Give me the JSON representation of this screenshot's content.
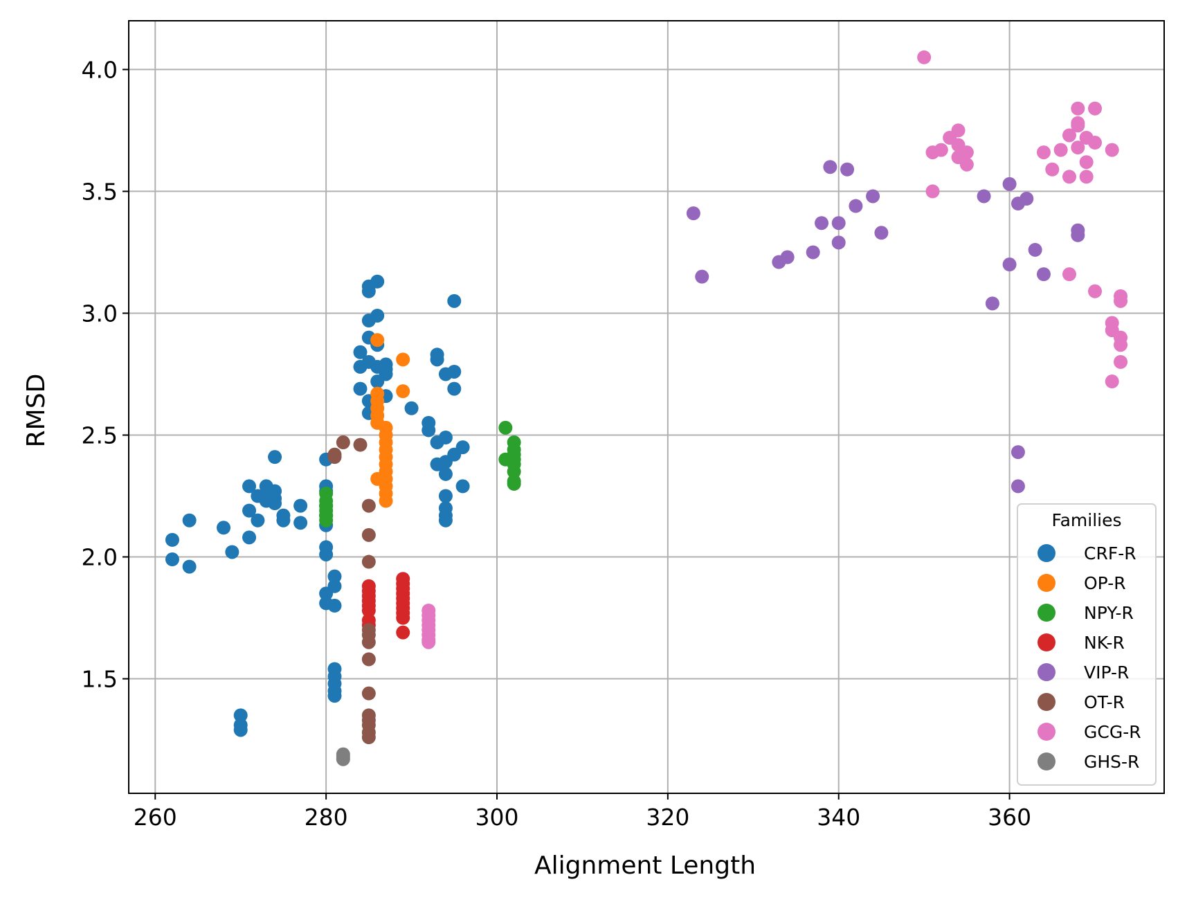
{
  "chart_data": {
    "type": "scatter",
    "title": "",
    "xlabel": "Alignment Length",
    "ylabel": "RMSD",
    "xlim": [
      256.9,
      378.1
    ],
    "ylim": [
      1.03,
      4.2
    ],
    "xticks": [
      260,
      280,
      300,
      320,
      340,
      360
    ],
    "yticks": [
      1.5,
      2.0,
      2.5,
      3.0,
      3.5,
      4.0
    ],
    "ytick_labels": [
      "1.5",
      "2.0",
      "2.5",
      "3.0",
      "3.5",
      "4.0"
    ],
    "grid": true,
    "legend": {
      "title": "Families",
      "position": "lower right"
    },
    "series": [
      {
        "name": "CRF-R",
        "color": "#1f77b4",
        "points": [
          [
            262,
            2.07
          ],
          [
            262,
            1.99
          ],
          [
            264,
            2.15
          ],
          [
            264,
            1.96
          ],
          [
            268,
            2.12
          ],
          [
            269,
            2.02
          ],
          [
            270,
            1.35
          ],
          [
            270,
            1.31
          ],
          [
            270,
            1.29
          ],
          [
            271,
            2.29
          ],
          [
            271,
            2.19
          ],
          [
            271,
            2.08
          ],
          [
            272,
            2.25
          ],
          [
            272,
            2.15
          ],
          [
            273,
            2.29
          ],
          [
            273,
            2.26
          ],
          [
            273,
            2.23
          ],
          [
            274,
            2.41
          ],
          [
            274,
            2.27
          ],
          [
            274,
            2.24
          ],
          [
            274,
            2.22
          ],
          [
            275,
            2.17
          ],
          [
            275,
            2.15
          ],
          [
            277,
            2.21
          ],
          [
            277,
            2.14
          ],
          [
            280,
            2.4
          ],
          [
            280,
            2.29
          ],
          [
            280,
            2.27
          ],
          [
            280,
            2.21
          ],
          [
            280,
            2.17
          ],
          [
            280,
            2.13
          ],
          [
            280,
            2.04
          ],
          [
            280,
            2.01
          ],
          [
            280,
            1.85
          ],
          [
            280,
            1.81
          ],
          [
            281,
            1.92
          ],
          [
            281,
            1.88
          ],
          [
            281,
            1.8
          ],
          [
            281,
            1.54
          ],
          [
            281,
            1.51
          ],
          [
            281,
            1.48
          ],
          [
            281,
            1.45
          ],
          [
            281,
            1.43
          ],
          [
            284,
            2.84
          ],
          [
            284,
            2.78
          ],
          [
            284,
            2.69
          ],
          [
            285,
            3.11
          ],
          [
            285,
            3.09
          ],
          [
            285,
            2.97
          ],
          [
            285,
            2.9
          ],
          [
            285,
            2.8
          ],
          [
            285,
            2.64
          ],
          [
            285,
            2.59
          ],
          [
            286,
            3.13
          ],
          [
            286,
            2.99
          ],
          [
            286,
            2.87
          ],
          [
            286,
            2.78
          ],
          [
            286,
            2.72
          ],
          [
            286,
            2.65
          ],
          [
            287,
            2.79
          ],
          [
            287,
            2.77
          ],
          [
            287,
            2.75
          ],
          [
            287,
            2.66
          ],
          [
            290,
            2.61
          ],
          [
            292,
            2.55
          ],
          [
            292,
            2.52
          ],
          [
            293,
            2.83
          ],
          [
            293,
            2.81
          ],
          [
            293,
            2.47
          ],
          [
            293,
            2.38
          ],
          [
            294,
            2.75
          ],
          [
            294,
            2.49
          ],
          [
            294,
            2.39
          ],
          [
            294,
            2.34
          ],
          [
            294,
            2.25
          ],
          [
            294,
            2.2
          ],
          [
            294,
            2.17
          ],
          [
            294,
            2.15
          ],
          [
            295,
            3.05
          ],
          [
            295,
            2.76
          ],
          [
            295,
            2.69
          ],
          [
            295,
            2.42
          ],
          [
            296,
            2.45
          ],
          [
            296,
            2.29
          ]
        ]
      },
      {
        "name": "OP-R",
        "color": "#ff7f0e",
        "points": [
          [
            286,
            2.89
          ],
          [
            286,
            2.67
          ],
          [
            286,
            2.64
          ],
          [
            286,
            2.61
          ],
          [
            286,
            2.58
          ],
          [
            286,
            2.55
          ],
          [
            286,
            2.32
          ],
          [
            287,
            2.53
          ],
          [
            287,
            2.5
          ],
          [
            287,
            2.47
          ],
          [
            287,
            2.44
          ],
          [
            287,
            2.41
          ],
          [
            287,
            2.38
          ],
          [
            287,
            2.35
          ],
          [
            287,
            2.32
          ],
          [
            287,
            2.29
          ],
          [
            287,
            2.26
          ],
          [
            287,
            2.23
          ],
          [
            289,
            2.81
          ],
          [
            289,
            2.68
          ]
        ]
      },
      {
        "name": "NPY-R",
        "color": "#2ca02c",
        "points": [
          [
            280,
            2.26
          ],
          [
            280,
            2.23
          ],
          [
            280,
            2.21
          ],
          [
            280,
            2.19
          ],
          [
            280,
            2.17
          ],
          [
            280,
            2.15
          ],
          [
            301,
            2.53
          ],
          [
            301,
            2.4
          ],
          [
            302,
            2.47
          ],
          [
            302,
            2.44
          ],
          [
            302,
            2.42
          ],
          [
            302,
            2.4
          ],
          [
            302,
            2.38
          ],
          [
            302,
            2.35
          ],
          [
            302,
            2.31
          ],
          [
            302,
            2.3
          ]
        ]
      },
      {
        "name": "NK-R",
        "color": "#d62728",
        "points": [
          [
            285,
            1.88
          ],
          [
            285,
            1.86
          ],
          [
            285,
            1.84
          ],
          [
            285,
            1.82
          ],
          [
            285,
            1.8
          ],
          [
            285,
            1.78
          ],
          [
            285,
            1.74
          ],
          [
            285,
            1.72
          ],
          [
            289,
            1.91
          ],
          [
            289,
            1.89
          ],
          [
            289,
            1.87
          ],
          [
            289,
            1.85
          ],
          [
            289,
            1.83
          ],
          [
            289,
            1.81
          ],
          [
            289,
            1.79
          ],
          [
            289,
            1.77
          ],
          [
            289,
            1.75
          ],
          [
            289,
            1.69
          ]
        ]
      },
      {
        "name": "VIP-R",
        "color": "#9467bd",
        "points": [
          [
            323,
            3.41
          ],
          [
            324,
            3.15
          ],
          [
            333,
            3.21
          ],
          [
            334,
            3.23
          ],
          [
            337,
            3.25
          ],
          [
            338,
            3.37
          ],
          [
            339,
            3.6
          ],
          [
            340,
            3.37
          ],
          [
            340,
            3.29
          ],
          [
            341,
            3.59
          ],
          [
            342,
            3.44
          ],
          [
            344,
            3.48
          ],
          [
            345,
            3.33
          ],
          [
            357,
            3.48
          ],
          [
            358,
            3.04
          ],
          [
            360,
            3.53
          ],
          [
            360,
            3.2
          ],
          [
            361,
            3.45
          ],
          [
            361,
            2.43
          ],
          [
            361,
            2.29
          ],
          [
            362,
            3.47
          ],
          [
            363,
            3.26
          ],
          [
            364,
            3.16
          ],
          [
            368,
            3.34
          ],
          [
            368,
            3.32
          ]
        ]
      },
      {
        "name": "OT-R",
        "color": "#8c564b",
        "points": [
          [
            281,
            2.42
          ],
          [
            281,
            2.41
          ],
          [
            282,
            2.47
          ],
          [
            284,
            2.46
          ],
          [
            285,
            2.21
          ],
          [
            285,
            2.09
          ],
          [
            285,
            1.98
          ],
          [
            285,
            1.7
          ],
          [
            285,
            1.68
          ],
          [
            285,
            1.65
          ],
          [
            285,
            1.58
          ],
          [
            285,
            1.44
          ],
          [
            285,
            1.35
          ],
          [
            285,
            1.33
          ],
          [
            285,
            1.31
          ],
          [
            285,
            1.28
          ],
          [
            285,
            1.26
          ]
        ]
      },
      {
        "name": "GCG-R",
        "color": "#e377c2",
        "points": [
          [
            292,
            1.78
          ],
          [
            292,
            1.76
          ],
          [
            292,
            1.74
          ],
          [
            292,
            1.72
          ],
          [
            292,
            1.7
          ],
          [
            292,
            1.68
          ],
          [
            292,
            1.66
          ],
          [
            292,
            1.65
          ],
          [
            350,
            4.05
          ],
          [
            351,
            3.66
          ],
          [
            351,
            3.5
          ],
          [
            352,
            3.67
          ],
          [
            353,
            3.72
          ],
          [
            354,
            3.75
          ],
          [
            354,
            3.69
          ],
          [
            354,
            3.64
          ],
          [
            355,
            3.66
          ],
          [
            355,
            3.61
          ],
          [
            364,
            3.66
          ],
          [
            365,
            3.59
          ],
          [
            366,
            3.67
          ],
          [
            367,
            3.73
          ],
          [
            367,
            3.56
          ],
          [
            367,
            3.16
          ],
          [
            368,
            3.84
          ],
          [
            368,
            3.78
          ],
          [
            368,
            3.77
          ],
          [
            368,
            3.68
          ],
          [
            369,
            3.72
          ],
          [
            369,
            3.62
          ],
          [
            369,
            3.56
          ],
          [
            370,
            3.84
          ],
          [
            370,
            3.7
          ],
          [
            370,
            3.09
          ],
          [
            372,
            3.67
          ],
          [
            372,
            2.96
          ],
          [
            372,
            2.93
          ],
          [
            372,
            2.72
          ],
          [
            373,
            3.07
          ],
          [
            373,
            3.05
          ],
          [
            373,
            2.9
          ],
          [
            373,
            2.87
          ],
          [
            373,
            2.8
          ]
        ]
      },
      {
        "name": "GHS-R",
        "color": "#7f7f7f",
        "points": [
          [
            282,
            1.19
          ],
          [
            282,
            1.18
          ],
          [
            282,
            1.17
          ]
        ]
      }
    ]
  }
}
